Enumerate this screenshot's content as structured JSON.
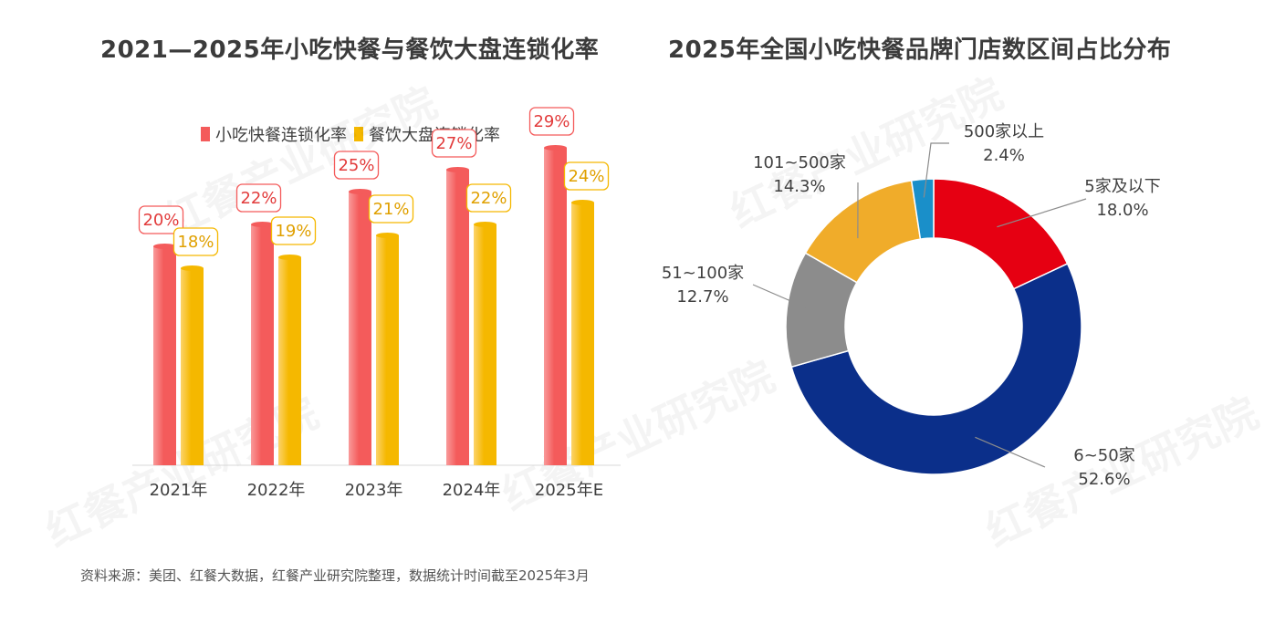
{
  "titles": {
    "left": "2021—2025年小吃快餐与餐饮大盘连锁化率",
    "right": "2025年全国小吃快餐品牌门店数区间占比分布"
  },
  "source": "资料来源：美团、红餐大数据，红餐产业研究院整理，数据统计时间截至2025年3月",
  "watermark": "红餐产业研究院",
  "colors": {
    "series1": "#f45b5b",
    "series2": "#f5b800",
    "slice_5": "#e60012",
    "slice_6_50": "#0b2f8a",
    "slice_51_100": "#8c8c8c",
    "slice_101_500": "#f0ac2a",
    "slice_500": "#1a8fc9"
  },
  "chart_data": [
    {
      "type": "bar",
      "title": "2021—2025年小吃快餐与餐饮大盘连锁化率",
      "categories": [
        "2021年",
        "2022年",
        "2023年",
        "2024年",
        "2025年E"
      ],
      "series": [
        {
          "name": "小吃快餐连锁化率",
          "values": [
            20,
            22,
            25,
            27,
            29
          ],
          "labels": [
            "20%",
            "22%",
            "25%",
            "27%",
            "29%"
          ]
        },
        {
          "name": "餐饮大盘连锁化率",
          "values": [
            18,
            19,
            21,
            22,
            24
          ],
          "labels": [
            "18%",
            "19%",
            "21%",
            "22%",
            "24%"
          ]
        }
      ],
      "ylim": [
        0,
        35
      ],
      "grid": false,
      "legend": "top"
    },
    {
      "type": "pie",
      "donut": true,
      "title": "2025年全国小吃快餐品牌门店数区间占比分布",
      "slices": [
        {
          "label": "5家及以下",
          "value": 18.0,
          "text": "18.0%"
        },
        {
          "label": "6~50家",
          "value": 52.6,
          "text": "52.6%"
        },
        {
          "label": "51~100家",
          "value": 12.7,
          "text": "12.7%"
        },
        {
          "label": "101~500家",
          "value": 14.3,
          "text": "14.3%"
        },
        {
          "label": "500家以上",
          "value": 2.4,
          "text": "2.4%"
        }
      ]
    }
  ]
}
